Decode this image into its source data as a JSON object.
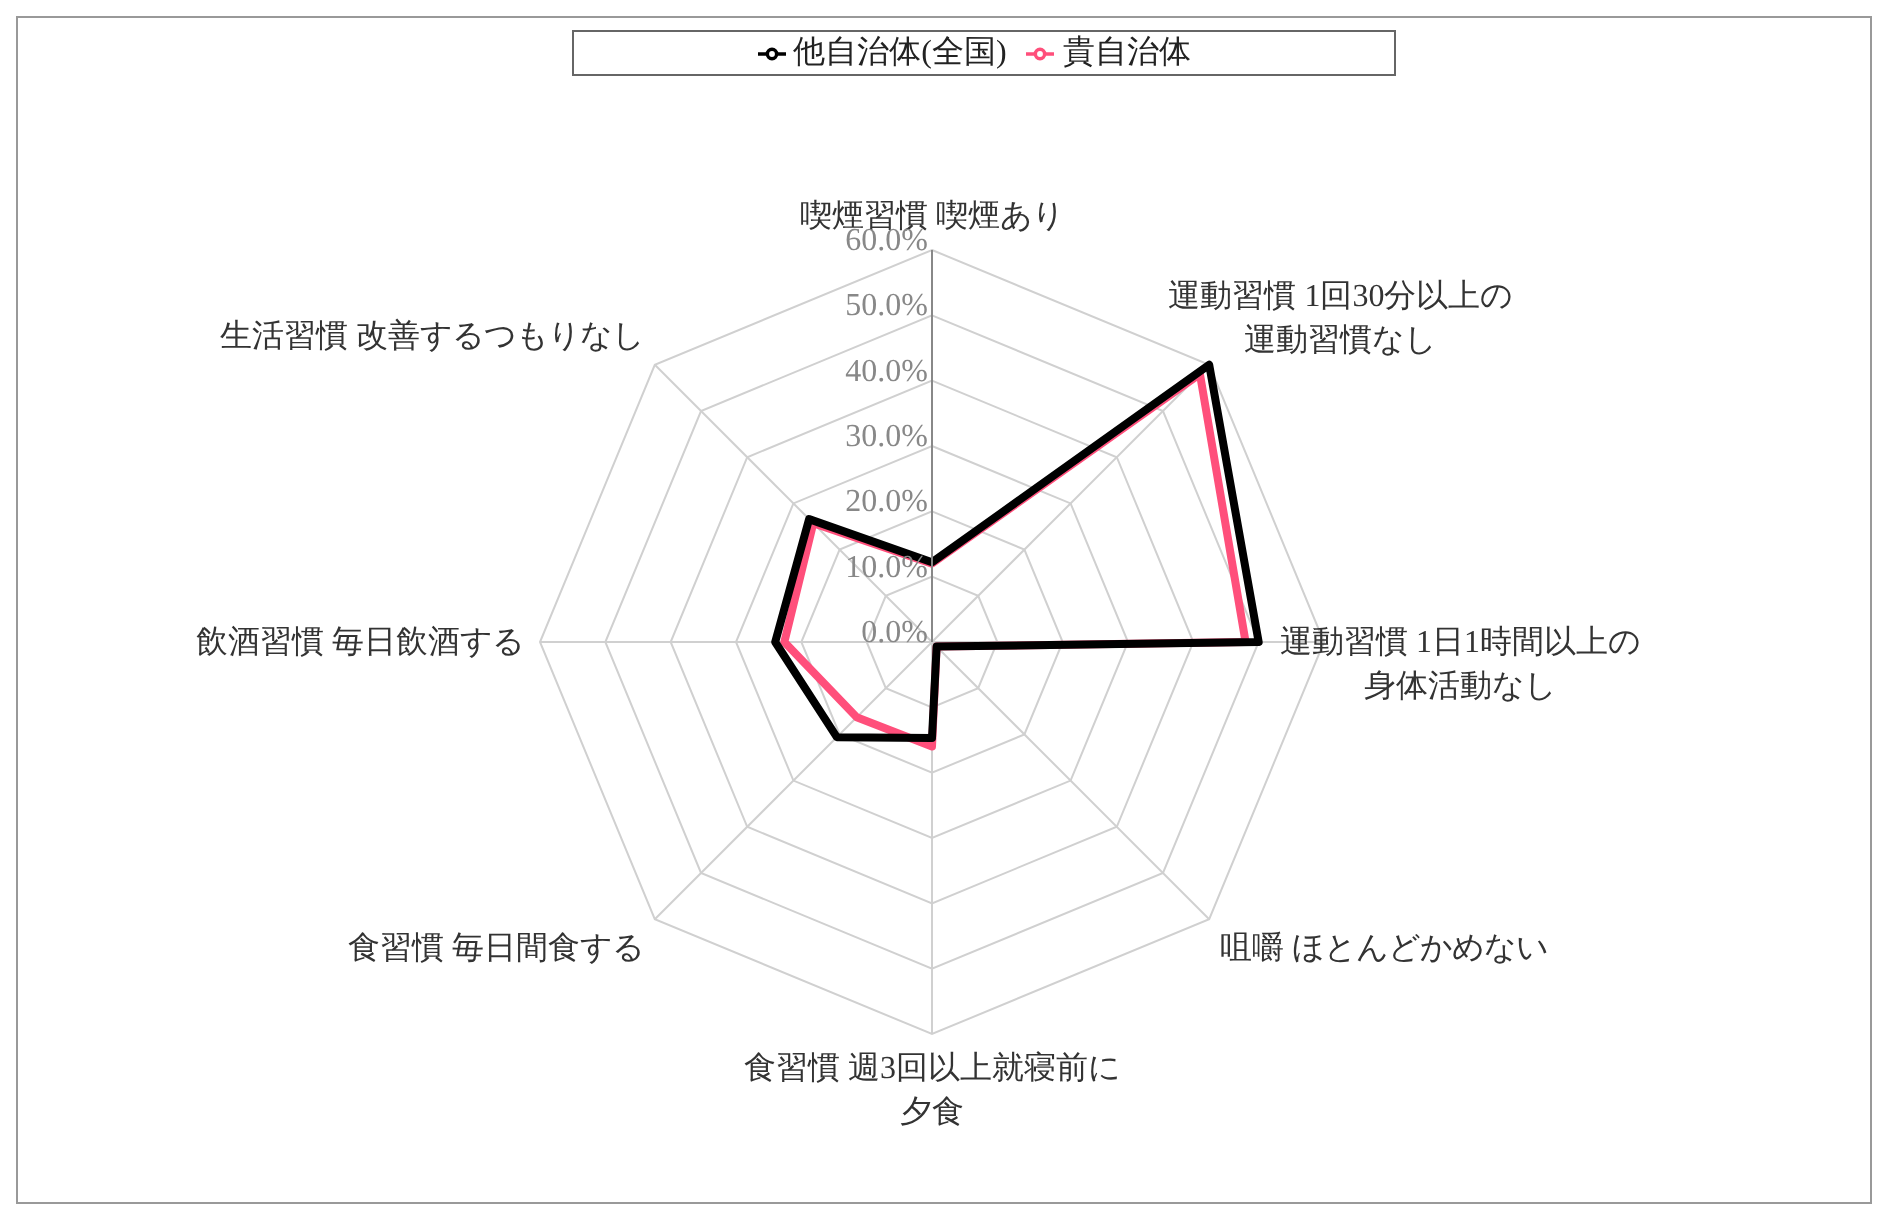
{
  "chart_data": {
    "type": "radar",
    "categories": [
      "喫煙習慣 喫煙あり",
      "運動習慣 1回30分以上の運動習慣なし",
      "運動習慣 1日1時間以上の身体活動なし",
      "咀嚼 ほとんどかめない",
      "食習慣 週3回以上就寝前に夕食",
      "食習慣 毎日間食する",
      "飲酒習慣 毎日飲酒する",
      "生活習慣 改善するつもりなし"
    ],
    "series": [
      {
        "name": "貴自治体",
        "color": "#ff4f7b",
        "values": [
          12.0,
          58.0,
          48.0,
          1.0,
          16.0,
          16.3,
          22.6,
          25.7
        ]
      },
      {
        "name": "他自治体(全国)",
        "color": "#000000",
        "values": [
          12.2,
          60.0,
          50.0,
          1.0,
          14.7,
          20.6,
          24.0,
          26.6
        ]
      }
    ],
    "ylim": [
      0,
      60
    ],
    "yticks": [
      {
        "value": 0,
        "label": "0.0%"
      },
      {
        "value": 10,
        "label": "10.0%"
      },
      {
        "value": 20,
        "label": "20.0%"
      },
      {
        "value": 30,
        "label": "30.0%"
      },
      {
        "value": 40,
        "label": "40.0%"
      },
      {
        "value": 50,
        "label": "50.0%"
      },
      {
        "value": 60,
        "label": "60.0%"
      }
    ],
    "grid": true,
    "legend": "top"
  }
}
